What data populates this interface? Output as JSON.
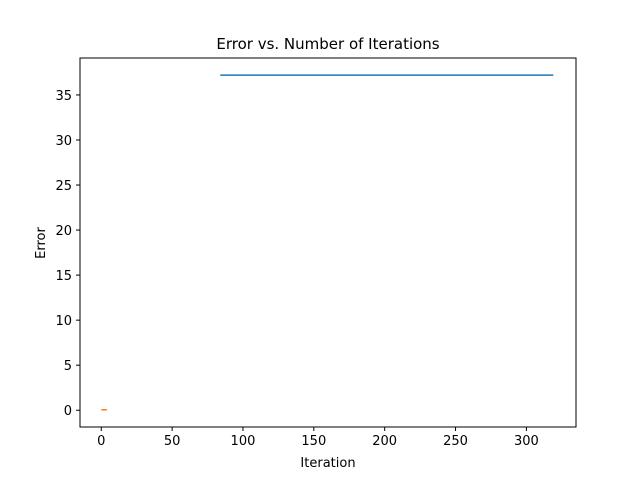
{
  "chart_data": {
    "type": "line",
    "title": "Error vs. Number of Iterations",
    "xlabel": "Iteration",
    "ylabel": "Error",
    "xlim": [
      -15,
      335
    ],
    "ylim": [
      -1.86,
      39.1
    ],
    "xticks": [
      0,
      50,
      100,
      150,
      200,
      250,
      300
    ],
    "yticks": [
      0,
      5,
      10,
      15,
      20,
      25,
      30,
      35
    ],
    "grid": false,
    "series": [
      {
        "color": "#1f77b4",
        "x": [
          84,
          319
        ],
        "y": [
          37.2,
          37.2
        ]
      },
      {
        "color": "#ff7f0e",
        "x": [
          0,
          4
        ],
        "y": [
          0.05,
          0.05
        ]
      }
    ]
  }
}
